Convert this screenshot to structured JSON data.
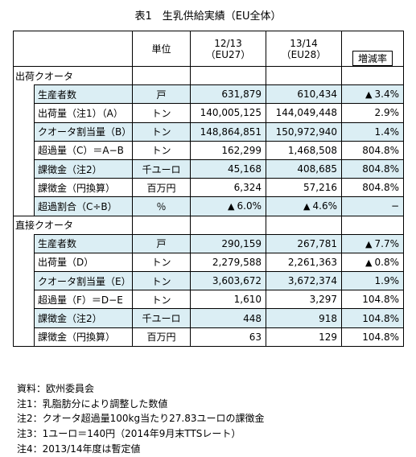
{
  "title": "表1　生乳供給実績（EU全体）",
  "header": {
    "unit": "単位",
    "col1_year": "12/13",
    "col1_sub": "（EU27）",
    "col2_year": "13/14",
    "col2_sub": "（EU28）",
    "rate": "増減率"
  },
  "sections": [
    {
      "label": "出荷クオータ",
      "rows": [
        {
          "name": "生産者数",
          "unit": "戸",
          "v1": "631,879",
          "v2": "610,434",
          "rate": "3.4%",
          "rate_tri": "▲",
          "v1_tri": "",
          "v2_tri": "",
          "blue": true
        },
        {
          "name": "出荷量（注1）（A）",
          "unit": "トン",
          "v1": "140,005,125",
          "v2": "144,049,448",
          "rate": "2.9%",
          "rate_tri": "",
          "v1_tri": "",
          "v2_tri": "",
          "blue": false
        },
        {
          "name": "クオータ割当量（B）",
          "unit": "トン",
          "v1": "148,864,851",
          "v2": "150,972,940",
          "rate": "1.4%",
          "rate_tri": "",
          "v1_tri": "",
          "v2_tri": "",
          "blue": true
        },
        {
          "name": "超過量（C）＝A−B",
          "unit": "トン",
          "v1": "162,299",
          "v2": "1,468,508",
          "rate": "804.8%",
          "rate_tri": "",
          "v1_tri": "",
          "v2_tri": "",
          "blue": false
        },
        {
          "name": "課徴金（注2）",
          "unit": "千ユーロ",
          "v1": "45,168",
          "v2": "408,685",
          "rate": "804.8%",
          "rate_tri": "",
          "v1_tri": "",
          "v2_tri": "",
          "blue": true
        },
        {
          "name": "課徴金（円換算）",
          "unit": "百万円",
          "v1": "6,324",
          "v2": "57,216",
          "rate": "804.8%",
          "rate_tri": "",
          "v1_tri": "",
          "v2_tri": "",
          "blue": false
        },
        {
          "name": "超過割合（C÷B）",
          "unit": "％",
          "v1": "6.0%",
          "v2": "4.6%",
          "rate": "−",
          "rate_tri": "",
          "v1_tri": "▲",
          "v2_tri": "▲",
          "blue": true
        }
      ]
    },
    {
      "label": "直接クオータ",
      "rows": [
        {
          "name": "生産者数",
          "unit": "戸",
          "v1": "290,159",
          "v2": "267,781",
          "rate": "7.7%",
          "rate_tri": "▲",
          "v1_tri": "",
          "v2_tri": "",
          "blue": true
        },
        {
          "name": "出荷量（D）",
          "unit": "トン",
          "v1": "2,279,588",
          "v2": "2,261,363",
          "rate": "0.8%",
          "rate_tri": "▲",
          "v1_tri": "",
          "v2_tri": "",
          "blue": false
        },
        {
          "name": "クオータ割当量（E）",
          "unit": "トン",
          "v1": "3,603,672",
          "v2": "3,672,374",
          "rate": "1.9%",
          "rate_tri": "",
          "v1_tri": "",
          "v2_tri": "",
          "blue": true
        },
        {
          "name": "超過量（F）＝D−E",
          "unit": "トン",
          "v1": "1,610",
          "v2": "3,297",
          "rate": "104.8%",
          "rate_tri": "",
          "v1_tri": "",
          "v2_tri": "",
          "blue": false
        },
        {
          "name": "課徴金（注2）",
          "unit": "千ユーロ",
          "v1": "448",
          "v2": "918",
          "rate": "104.8%",
          "rate_tri": "",
          "v1_tri": "",
          "v2_tri": "",
          "blue": true
        },
        {
          "name": "課徴金（円換算）",
          "unit": "百万円",
          "v1": "63",
          "v2": "129",
          "rate": "104.8%",
          "rate_tri": "",
          "v1_tri": "",
          "v2_tri": "",
          "blue": false
        }
      ]
    }
  ],
  "notes": [
    "資料：欧州委員会",
    "注1：乳脂肪分により調整した数値",
    "注2：クオータ超過量100kg当たり27.83ユーロの課徴金",
    "注3：1ユーロ＝140円（2014年9月末TTSレート）",
    "注4：2013/14年度は暫定値"
  ]
}
